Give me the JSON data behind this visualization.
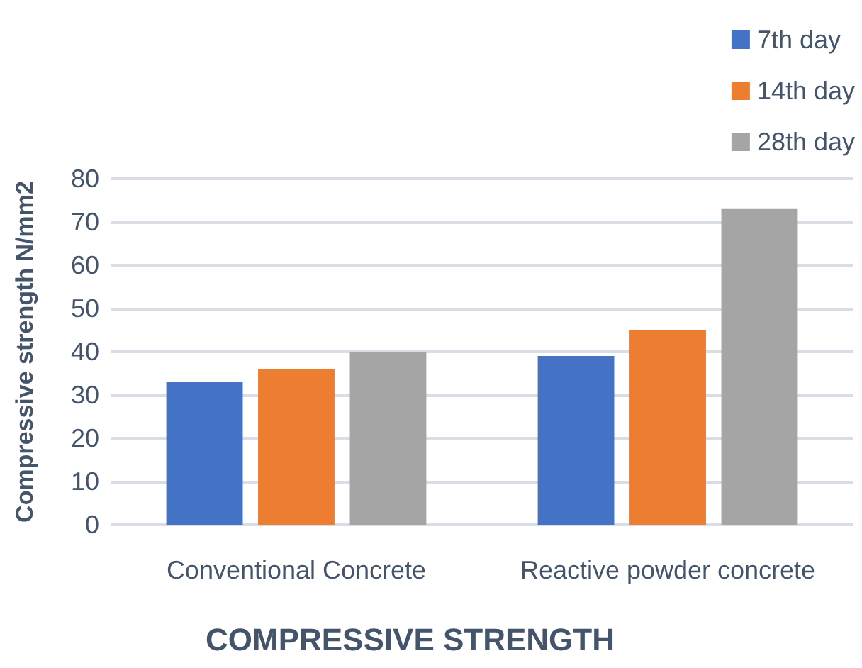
{
  "chart_data": {
    "type": "bar",
    "title": "COMPRESSIVE STRENGTH",
    "ylabel": "Compressive strength N/mm2",
    "categories": [
      "Conventional Concrete",
      "Reactive powder concrete"
    ],
    "series": [
      {
        "name": "7th day",
        "color": "#4472c4",
        "values": [
          33,
          39
        ]
      },
      {
        "name": "14th day",
        "color": "#ed7d31",
        "values": [
          36,
          45
        ]
      },
      {
        "name": "28th day",
        "color": "#a5a5a5",
        "values": [
          40,
          73
        ]
      }
    ],
    "ylim": [
      0,
      80
    ],
    "yticks": [
      0,
      10,
      20,
      30,
      40,
      50,
      60,
      70,
      80
    ],
    "grid": "y",
    "legend": "top right"
  }
}
